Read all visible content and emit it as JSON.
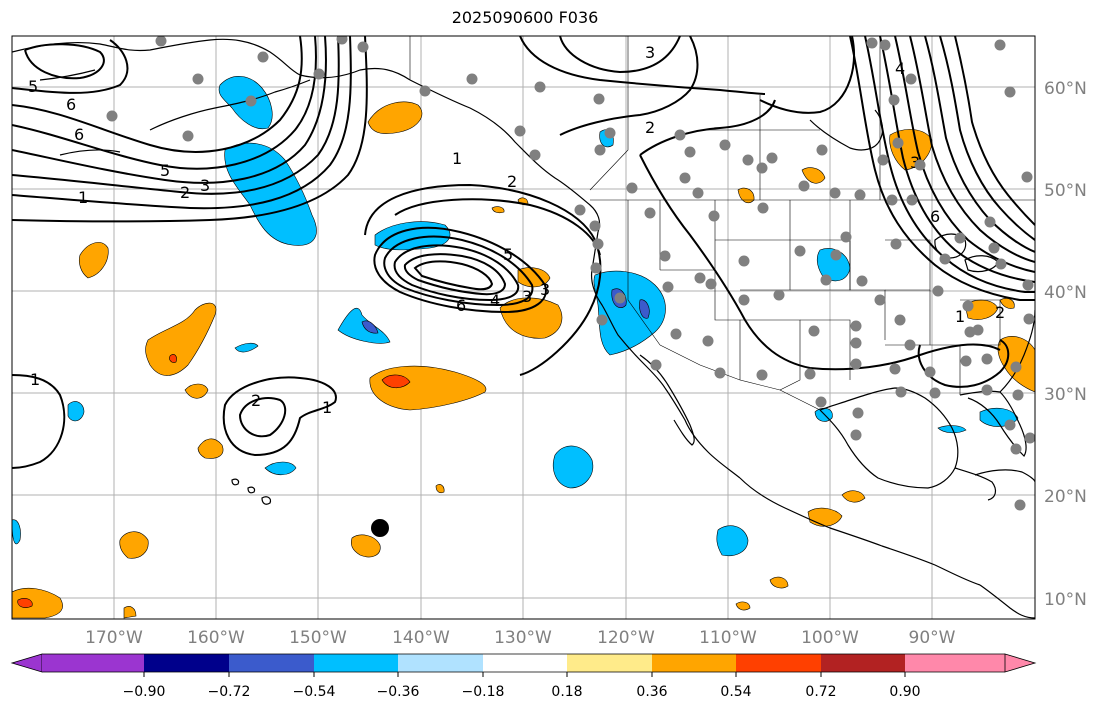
{
  "title": "2025090600 F036",
  "map": {
    "lon_range": [
      -182,
      -82
    ],
    "lat_range": [
      8,
      65
    ],
    "lon_ticks": [
      "170°W",
      "160°W",
      "150°W",
      "140°W",
      "130°W",
      "120°W",
      "110°W",
      "100°W",
      "90°W"
    ],
    "lat_ticks": [
      "60°N",
      "50°N",
      "40°N",
      "30°N",
      "20°N",
      "10°N"
    ],
    "grid": true,
    "contour_labels": [
      "5",
      "6",
      "6",
      "5",
      "2",
      "3",
      "1",
      "1",
      "2",
      "3",
      "5",
      "6",
      "4",
      "3",
      "1",
      "2",
      "1",
      "2",
      "3",
      "2",
      "3",
      "4",
      "6",
      "1"
    ],
    "colors": {
      "negative_medium": "#00bfff",
      "negative_light": "#b0e2ff",
      "negative_strong": "#3b5bcc",
      "positive_light": "#ffeb8a",
      "positive_medium": "#ffa500",
      "positive_strong": "#ff4000",
      "station_marker": "#808080",
      "special_marker": "#000000"
    }
  },
  "colorbar": {
    "tick_labels": [
      "−0.90",
      "−0.72",
      "−0.54",
      "−0.36",
      "−0.18",
      "0.18",
      "0.36",
      "0.54",
      "0.72",
      "0.90"
    ],
    "bins": [
      "#9b35d0",
      "#00008b",
      "#3b5bcc",
      "#00bfff",
      "#b0e2ff",
      "#ffffff",
      "#ffeb8a",
      "#ffa500",
      "#ff4000",
      "#b22222",
      "#ff88aa"
    ]
  }
}
